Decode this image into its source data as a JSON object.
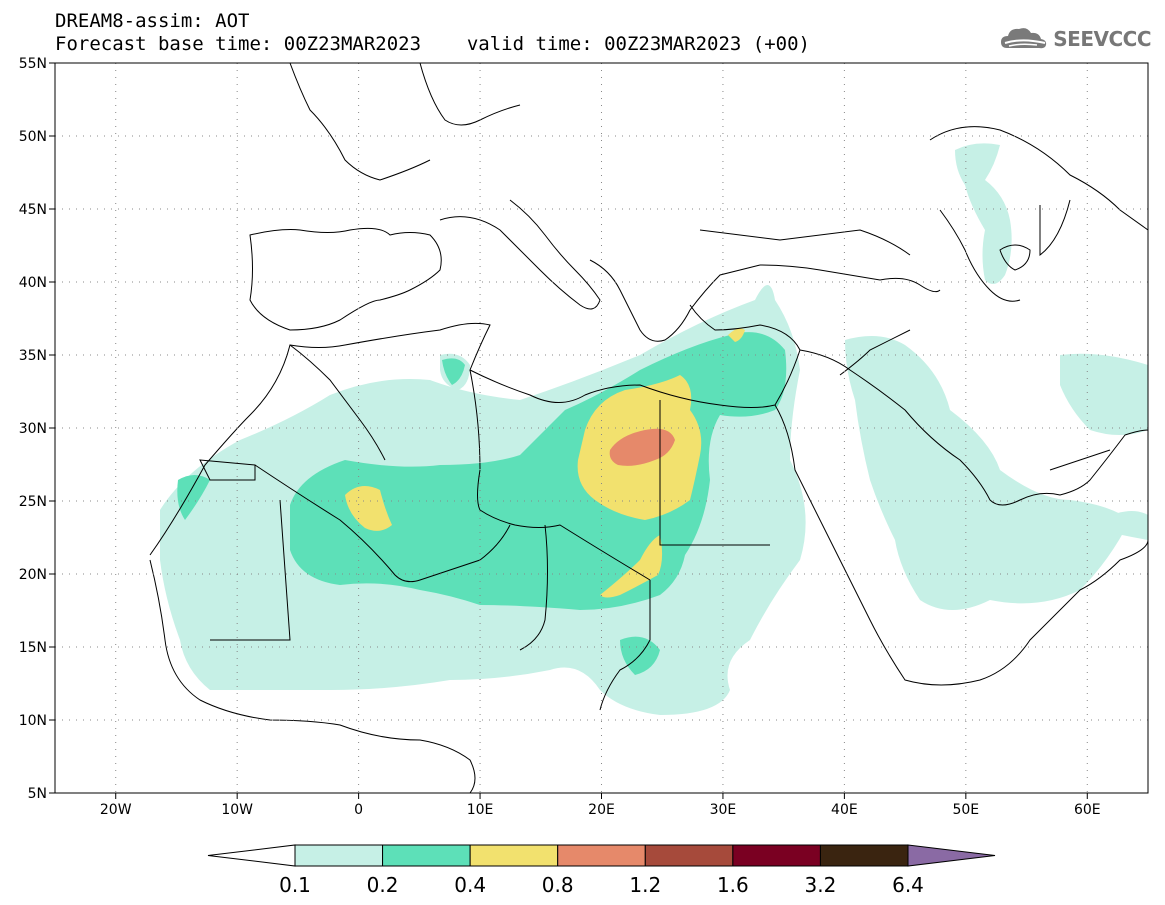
{
  "header": {
    "title_line1": "DREAM8-assim: AOT",
    "base_time_label": "Forecast base time: 00Z23MAR2023",
    "valid_time_label": "valid time: 00Z23MAR2023 (+00)",
    "brand": "SEEVCCC"
  },
  "map": {
    "lat_range": [
      5,
      55
    ],
    "lon_range": [
      -25,
      65
    ],
    "lat_ticks": [
      "55N",
      "50N",
      "45N",
      "40N",
      "35N",
      "30N",
      "25N",
      "20N",
      "15N",
      "10N",
      "5N"
    ],
    "lon_ticks": [
      "20W",
      "10W",
      "0",
      "10E",
      "20E",
      "30E",
      "40E",
      "50E",
      "60E"
    ]
  },
  "colorbar": {
    "labels": [
      "0.1",
      "0.2",
      "0.4",
      "0.8",
      "1.2",
      "1.6",
      "3.2",
      "6.4"
    ],
    "colors": [
      "#ffffff",
      "#c6f0e6",
      "#5de0b8",
      "#f2e16e",
      "#e6896a",
      "#a64a3b",
      "#7a0022",
      "#3a2410",
      "#8a6aa4"
    ]
  },
  "aot_colors": {
    "low": "#c6f0e6",
    "moderate": "#5de0b8",
    "high": "#f2e16e",
    "very_high": "#e6896a"
  }
}
